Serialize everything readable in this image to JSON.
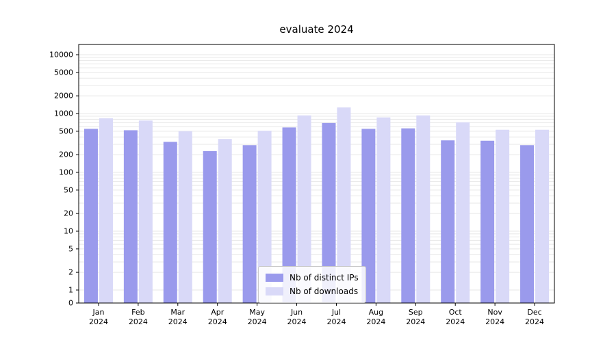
{
  "chart_data": {
    "type": "bar",
    "title": "evaluate 2024",
    "x_year": "2024",
    "x_months": [
      "Jan",
      "Feb",
      "Mar",
      "Apr",
      "May",
      "Jun",
      "Jul",
      "Aug",
      "Sep",
      "Oct",
      "Nov",
      "Dec"
    ],
    "yscale": "symlog",
    "yticks": [
      10000,
      5000,
      2000,
      1000,
      500,
      200,
      100,
      50,
      20,
      10,
      5,
      2,
      1,
      0
    ],
    "ylim": [
      0,
      15000
    ],
    "grid": "horizontal-log-minor",
    "grid_color": "#e7e7e7",
    "axis_color": "#000000",
    "legend_position": "lower center",
    "series": [
      {
        "name": "Nb of distinct IPs",
        "color": "#9a9aec",
        "values": [
          550,
          520,
          330,
          230,
          290,
          580,
          690,
          550,
          560,
          350,
          345,
          290
        ]
      },
      {
        "name": "Nb of downloads",
        "color": "#d9d9f8",
        "values": [
          830,
          760,
          500,
          370,
          510,
          930,
          1270,
          860,
          930,
          710,
          530,
          530
        ]
      }
    ]
  }
}
